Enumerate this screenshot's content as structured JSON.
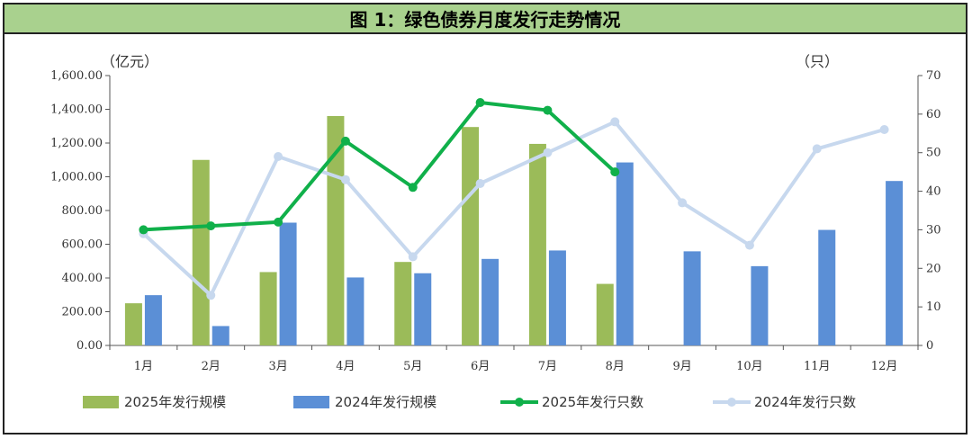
{
  "title": "图 1：绿色债券月度发行走势情况",
  "chart_data": {
    "type": "bar",
    "title": "图 1：绿色债券月度发行走势情况",
    "left_unit": "（亿元）",
    "right_unit": "（只）",
    "categories": [
      "1月",
      "2月",
      "3月",
      "4月",
      "5月",
      "6月",
      "7月",
      "8月",
      "9月",
      "10月",
      "11月",
      "12月"
    ],
    "left_axis": {
      "min": 0,
      "max": 1600,
      "step": 200,
      "tick_labels": [
        "0.00",
        "200.00",
        "400.00",
        "600.00",
        "800.00",
        "1,000.00",
        "1,200.00",
        "1,400.00",
        "1,600.00"
      ]
    },
    "right_axis": {
      "min": 0,
      "max": 70,
      "step": 10,
      "tick_labels": [
        "0",
        "10",
        "20",
        "30",
        "40",
        "50",
        "60",
        "70"
      ]
    },
    "series": [
      {
        "name": "2025年发行规模",
        "type": "bar",
        "axis": "left",
        "color": "#9bbb59",
        "values": [
          250,
          1100,
          435,
          1360,
          495,
          1295,
          1195,
          365,
          null,
          null,
          null,
          null
        ]
      },
      {
        "name": "2024年发行规模",
        "type": "bar",
        "axis": "left",
        "color": "#5b8fd6",
        "values": [
          298,
          115,
          728,
          403,
          428,
          513,
          563,
          1085,
          558,
          470,
          685,
          975
        ]
      },
      {
        "name": "2025年发行只数",
        "type": "line",
        "axis": "right",
        "color": "#10b04a",
        "values": [
          30,
          31,
          32,
          53,
          41,
          63,
          61,
          45,
          null,
          null,
          null,
          null
        ]
      },
      {
        "name": "2024年发行只数",
        "type": "line",
        "axis": "right",
        "color": "#c7d8ee",
        "values": [
          29,
          13,
          49,
          43,
          23,
          42,
          50,
          58,
          37,
          26,
          51,
          56
        ]
      }
    ],
    "legend_position": "bottom",
    "grid": false
  }
}
